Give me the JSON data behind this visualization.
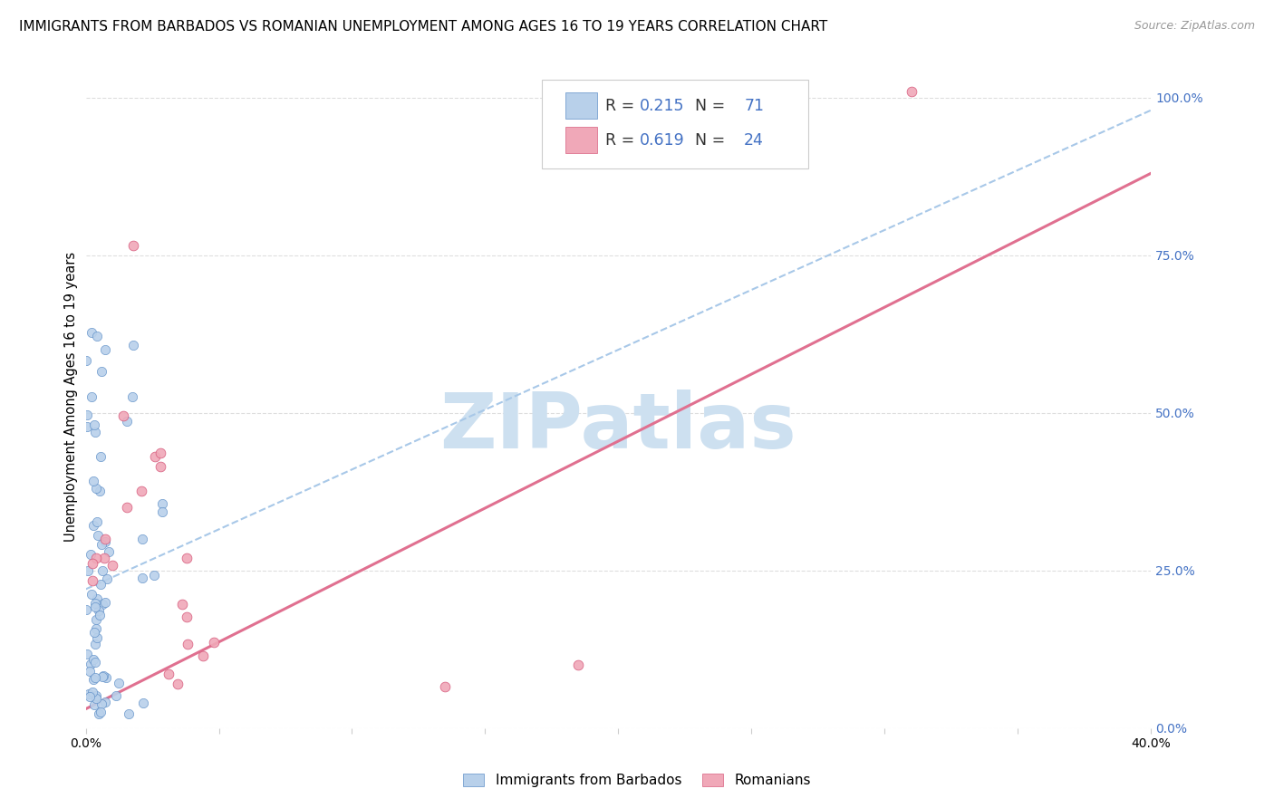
{
  "title": "IMMIGRANTS FROM BARBADOS VS ROMANIAN UNEMPLOYMENT AMONG AGES 16 TO 19 YEARS CORRELATION CHART",
  "source": "Source: ZipAtlas.com",
  "ylabel": "Unemployment Among Ages 16 to 19 years",
  "right_ytick_vals": [
    0.0,
    0.25,
    0.5,
    0.75,
    1.0
  ],
  "right_ytick_labels": [
    "0.0%",
    "25.0%",
    "50.0%",
    "75.0%",
    "100.0%"
  ],
  "legend_label1": "Immigrants from Barbados",
  "legend_label2": "Romanians",
  "r1": "0.215",
  "n1": "71",
  "r2": "0.619",
  "n2": "24",
  "color_blue_fill": "#b8d0ea",
  "color_blue_edge": "#6090c8",
  "color_pink_fill": "#f0a8b8",
  "color_pink_edge": "#d86080",
  "color_blue_text": "#4472c4",
  "color_dashed_line": "#a8c8e8",
  "color_pink_line": "#e07090",
  "xmin": 0.0,
  "xmax": 0.4,
  "ymin": 0.0,
  "ymax": 1.05,
  "xtick_vals": [
    0.0,
    0.05,
    0.1,
    0.15,
    0.2,
    0.25,
    0.3,
    0.35,
    0.4
  ],
  "xtick_labels": [
    "0.0%",
    "",
    "",
    "",
    "",
    "",
    "",
    "",
    "40.0%"
  ],
  "watermark": "ZIPatlas",
  "watermark_color": "#cde0f0",
  "grid_color": "#dedede",
  "grid_style": "--",
  "blue_line_x": [
    0.0,
    0.4
  ],
  "blue_line_y": [
    0.22,
    0.98
  ],
  "pink_line_x": [
    0.0,
    0.4
  ],
  "pink_line_y": [
    0.03,
    0.88
  ]
}
